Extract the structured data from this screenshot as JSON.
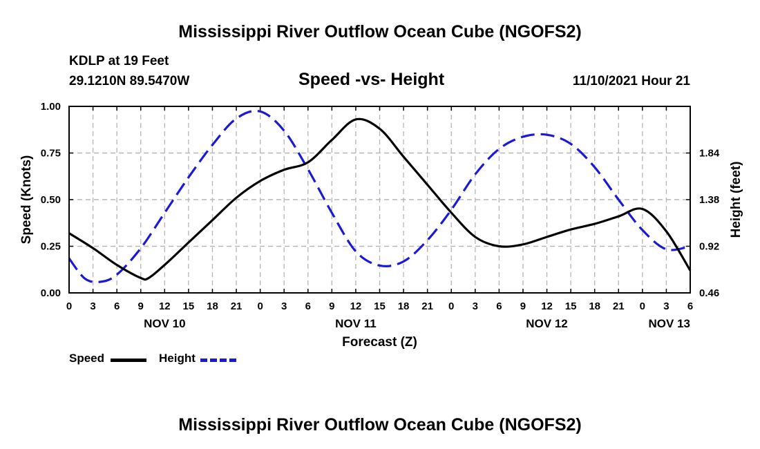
{
  "header": {
    "title": "Mississippi River Outflow Ocean Cube (NGOFS2)",
    "station": "KDLP at 19 Feet",
    "coords": "29.1210N  89.5470W",
    "chart_title": "Speed -vs- Height",
    "datetime": "11/10/2021 Hour 21"
  },
  "footer": {
    "title": "Mississippi River Outflow Ocean Cube (NGOFS2)"
  },
  "legend": {
    "speed_label": "Speed",
    "height_label": "Height",
    "speed_color": "#000000",
    "height_color": "#1a1ad6"
  },
  "chart_data": {
    "type": "line",
    "title": "Speed -vs- Height",
    "xlabel": "Forecast (Z)",
    "ylabel": "Speed (Knots)",
    "y2label": "Height (feet)",
    "x_unit": "hours since NOV 10 00Z",
    "xlim": [
      0,
      78
    ],
    "ylim": [
      0,
      1.0
    ],
    "y2lim": [
      0.46,
      2.3
    ],
    "x_ticks": [
      0,
      3,
      6,
      9,
      12,
      15,
      18,
      21,
      24,
      27,
      30,
      33,
      36,
      39,
      42,
      45,
      48,
      51,
      54,
      57,
      60,
      63,
      66,
      69,
      72,
      75,
      78
    ],
    "x_tick_labels": [
      "0",
      "3",
      "6",
      "9",
      "12",
      "15",
      "18",
      "21",
      "0",
      "3",
      "6",
      "9",
      "12",
      "15",
      "18",
      "21",
      "0",
      "3",
      "6",
      "9",
      "12",
      "15",
      "18",
      "21",
      "0",
      "3",
      "6"
    ],
    "y_ticks": [
      0,
      0.25,
      0.5,
      0.75,
      1.0
    ],
    "y_tick_labels": [
      "0.00",
      "0.25",
      "0.50",
      "0.75",
      "1.00"
    ],
    "y2_ticks": [
      0.46,
      0.92,
      1.38,
      1.84
    ],
    "y2_tick_labels": [
      "0.46",
      "0.92",
      "1.38",
      "1.84"
    ],
    "day_labels": [
      {
        "x": 12,
        "label": "NOV 10"
      },
      {
        "x": 36,
        "label": "NOV 11"
      },
      {
        "x": 60,
        "label": "NOV 12"
      },
      {
        "x": 78,
        "label": "NOV 13"
      }
    ],
    "series": [
      {
        "name": "Speed",
        "axis": "left",
        "style": "solid",
        "x": [
          0,
          3,
          6,
          9,
          10,
          12,
          15,
          18,
          21,
          24,
          27,
          30,
          33,
          36,
          39,
          42,
          45,
          48,
          51,
          54,
          57,
          60,
          63,
          66,
          69,
          72,
          75,
          78
        ],
        "values": [
          0.32,
          0.24,
          0.15,
          0.08,
          0.08,
          0.15,
          0.27,
          0.39,
          0.51,
          0.6,
          0.66,
          0.7,
          0.82,
          0.93,
          0.88,
          0.73,
          0.58,
          0.43,
          0.3,
          0.25,
          0.26,
          0.3,
          0.34,
          0.37,
          0.41,
          0.45,
          0.33,
          0.12
        ]
      },
      {
        "name": "Height",
        "axis": "right",
        "style": "dashed",
        "x": [
          0,
          2,
          4,
          6,
          9,
          12,
          15,
          18,
          21,
          24,
          27,
          30,
          33,
          36,
          39,
          42,
          45,
          48,
          51,
          54,
          57,
          60,
          63,
          66,
          69,
          72,
          75,
          78
        ],
        "values": [
          0.8,
          0.6,
          0.57,
          0.64,
          0.9,
          1.25,
          1.6,
          1.92,
          2.18,
          2.25,
          2.06,
          1.68,
          1.25,
          0.87,
          0.73,
          0.77,
          0.98,
          1.28,
          1.63,
          1.88,
          2.0,
          2.02,
          1.93,
          1.7,
          1.38,
          1.08,
          0.89,
          0.92
        ]
      }
    ]
  }
}
